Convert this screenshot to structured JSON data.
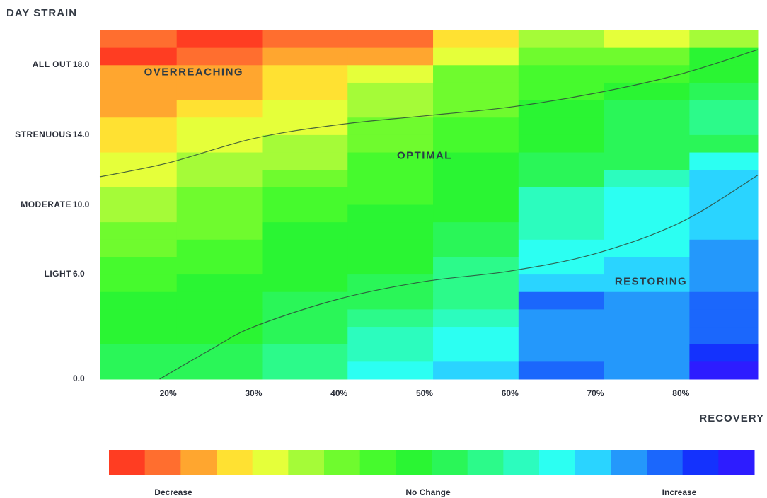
{
  "chart_data": {
    "type": "heatmap",
    "title": "DAY STRAIN",
    "xlabel": "RECOVERY",
    "xlim": [
      12,
      89
    ],
    "ylim": [
      0,
      20
    ],
    "x_ticks": [
      {
        "value": 20,
        "label": "20%"
      },
      {
        "value": 30,
        "label": "30%"
      },
      {
        "value": 40,
        "label": "40%"
      },
      {
        "value": 50,
        "label": "50%"
      },
      {
        "value": 60,
        "label": "60%"
      },
      {
        "value": 70,
        "label": "70%"
      },
      {
        "value": 80,
        "label": "80%"
      }
    ],
    "y_ticks": [
      {
        "value": 18,
        "name": "ALL OUT",
        "label": "18.0"
      },
      {
        "value": 14,
        "name": "STRENUOUS",
        "label": "14.0"
      },
      {
        "value": 10,
        "name": "MODERATE",
        "label": "10.0"
      },
      {
        "value": 6,
        "name": "LIGHT",
        "label": "6.0"
      },
      {
        "value": 0,
        "name": "",
        "label": "0.0"
      }
    ],
    "column_edges": [
      12,
      21,
      31,
      41,
      51,
      61,
      71,
      81,
      89
    ],
    "row_edges": [
      20,
      19,
      18,
      17,
      16,
      15,
      14,
      13,
      12,
      11,
      10,
      9,
      8,
      7,
      6,
      5,
      4,
      3,
      2,
      1,
      0
    ],
    "palette": [
      "#ff3d22",
      "#ff6e2f",
      "#ffa62f",
      "#ffe132",
      "#e5ff3a",
      "#a5fb38",
      "#6ffb2e",
      "#46fa2d",
      "#2af533",
      "#2af658",
      "#2cfa8a",
      "#2cfcbe",
      "#2cfff2",
      "#2ad4ff",
      "#2498fb",
      "#1b67fc",
      "#1432fd",
      "#2d1cff"
    ],
    "grid": [
      [
        1,
        0,
        1,
        1,
        3,
        5,
        4,
        5
      ],
      [
        0,
        1,
        2,
        2,
        4,
        6,
        6,
        8
      ],
      [
        2,
        2,
        3,
        4,
        6,
        7,
        7,
        8
      ],
      [
        2,
        2,
        3,
        5,
        6,
        7,
        8,
        9
      ],
      [
        2,
        3,
        4,
        5,
        6,
        8,
        9,
        10
      ],
      [
        3,
        4,
        4,
        6,
        7,
        8,
        9,
        10
      ],
      [
        3,
        4,
        5,
        6,
        7,
        8,
        9,
        9
      ],
      [
        4,
        5,
        5,
        7,
        8,
        9,
        9,
        12
      ],
      [
        4,
        5,
        6,
        7,
        8,
        9,
        11,
        13
      ],
      [
        5,
        6,
        7,
        7,
        8,
        11,
        12,
        13
      ],
      [
        5,
        6,
        7,
        8,
        8,
        11,
        12,
        13
      ],
      [
        6,
        6,
        8,
        8,
        9,
        11,
        12,
        13
      ],
      [
        6,
        7,
        8,
        8,
        9,
        12,
        12,
        14
      ],
      [
        7,
        7,
        8,
        8,
        10,
        12,
        13,
        14
      ],
      [
        7,
        8,
        8,
        9,
        10,
        13,
        13,
        14
      ],
      [
        8,
        8,
        9,
        9,
        10,
        15,
        14,
        15
      ],
      [
        8,
        8,
        9,
        10,
        11,
        14,
        14,
        15
      ],
      [
        8,
        8,
        9,
        11,
        12,
        14,
        14,
        15
      ],
      [
        9,
        9,
        10,
        11,
        12,
        14,
        14,
        16
      ],
      [
        9,
        9,
        10,
        12,
        13,
        15,
        14,
        17
      ]
    ],
    "series": [
      {
        "values": [
          [
            12,
            11.6
          ],
          [
            20,
            12.4
          ],
          [
            30,
            13.8
          ],
          [
            40,
            14.6
          ],
          [
            50,
            15.1
          ],
          [
            60,
            15.6
          ],
          [
            70,
            16.4
          ],
          [
            80,
            17.5
          ],
          [
            89,
            18.9
          ]
        ]
      },
      {
        "values": [
          [
            19,
            0
          ],
          [
            25,
            1.7
          ],
          [
            30,
            3
          ],
          [
            40,
            4.6
          ],
          [
            50,
            5.6
          ],
          [
            60,
            6.2
          ],
          [
            70,
            7.2
          ],
          [
            80,
            9
          ],
          [
            89,
            11.7
          ]
        ]
      }
    ],
    "zones": [
      {
        "label": "OVERREACHING",
        "x": 23,
        "y": 17.6
      },
      {
        "label": "OPTIMAL",
        "x": 50,
        "y": 12.8
      },
      {
        "label": "RESTORING",
        "x": 76.5,
        "y": 5.6
      }
    ],
    "legend": {
      "left_label": "Decrease",
      "mid_label": "No Change",
      "right_label": "Increase"
    }
  }
}
